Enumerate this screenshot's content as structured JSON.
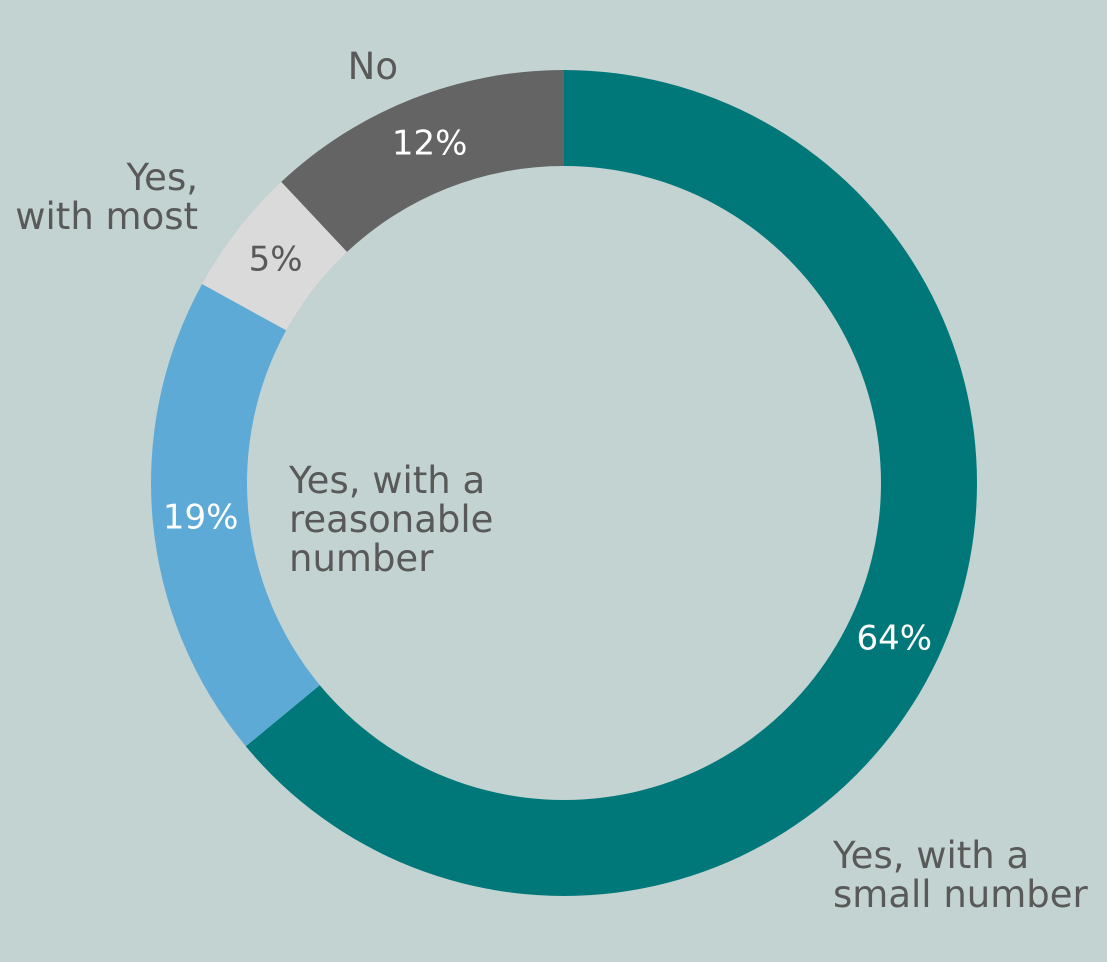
{
  "chart_data": {
    "type": "pie",
    "style": "donut",
    "start_angle": "12 o'clock",
    "direction": "clockwise",
    "background": "#c3d3d1",
    "label_color": "#595959",
    "slices": [
      {
        "label": "Yes, with a small number",
        "label_lines": [
          "Yes, with a",
          "small number"
        ],
        "value": 64,
        "value_label": "64%",
        "color": "#00787a",
        "value_label_color": "#ffffff"
      },
      {
        "label": "Yes, with a reasonable number",
        "label_lines": [
          "Yes, with a",
          "reasonable",
          "number"
        ],
        "value": 19,
        "value_label": "19%",
        "color": "#5eaad7",
        "value_label_color": "#ffffff"
      },
      {
        "label": "Yes, with most",
        "label_lines": [
          "Yes,",
          "with most"
        ],
        "value": 5,
        "value_label": "5%",
        "color": "#dadada",
        "value_label_color": "#595959"
      },
      {
        "label": "No",
        "label_lines": [
          "No"
        ],
        "value": 12,
        "value_label": "12%",
        "color": "#646464",
        "value_label_color": "#ffffff"
      }
    ]
  }
}
